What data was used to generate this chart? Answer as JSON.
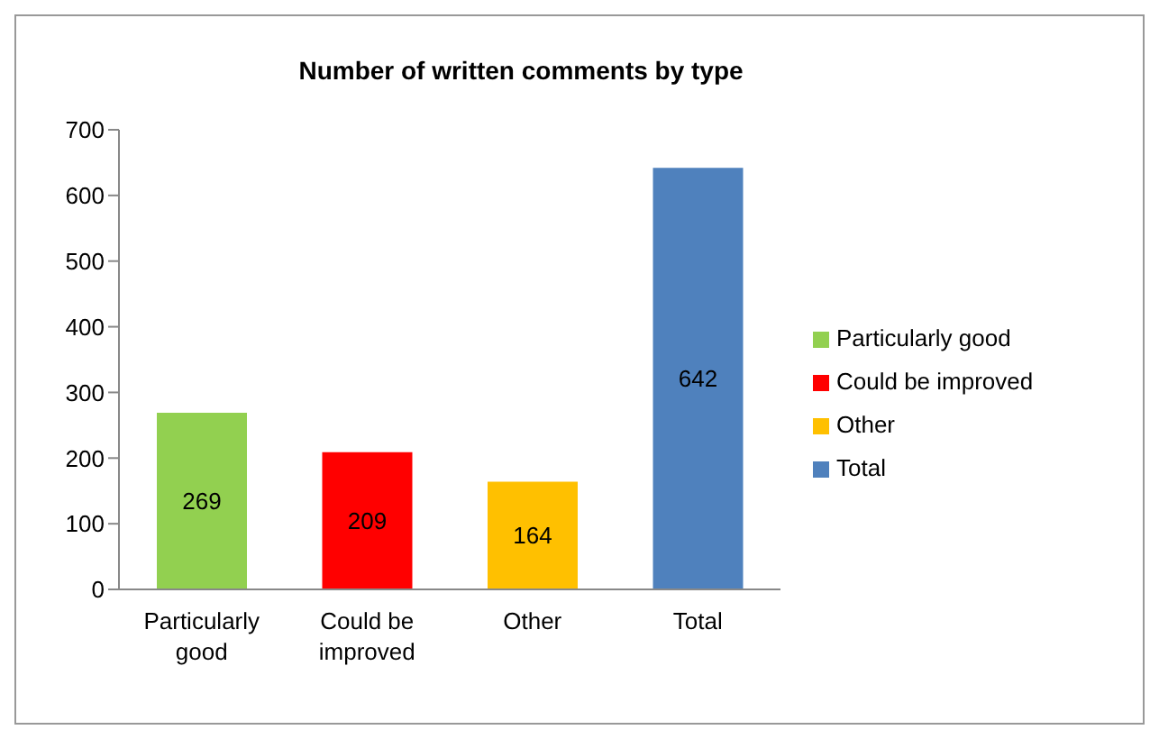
{
  "chart_data": {
    "type": "bar",
    "title": "Number of written comments by type",
    "categories": [
      "Particularly good",
      "Could be improved",
      "Other",
      "Total"
    ],
    "series": [
      {
        "name": "Particularly good",
        "color": "#92d050",
        "values": [
          269,
          null,
          null,
          null
        ]
      },
      {
        "name": "Could be improved",
        "color": "#ff0000",
        "values": [
          null,
          209,
          null,
          null
        ]
      },
      {
        "name": "Other",
        "color": "#ffc000",
        "values": [
          null,
          null,
          164,
          null
        ]
      },
      {
        "name": "Total",
        "color": "#4f81bd",
        "values": [
          null,
          null,
          null,
          642
        ]
      }
    ],
    "ylim": [
      0,
      700
    ],
    "yticks": [
      0,
      100,
      200,
      300,
      400,
      500,
      600,
      700
    ],
    "legend": "right",
    "data_labels": true
  }
}
